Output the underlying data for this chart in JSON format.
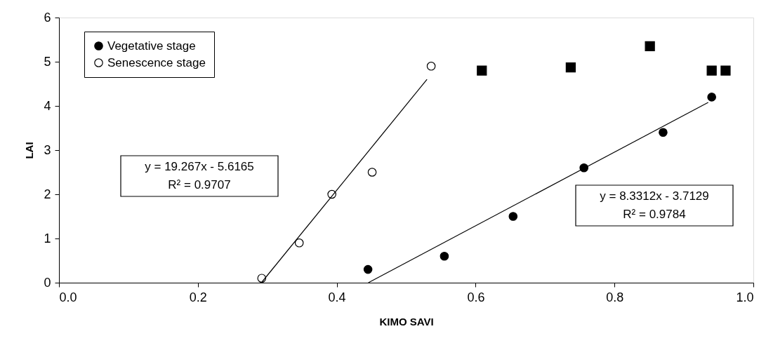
{
  "chart_data": {
    "type": "scatter",
    "xlabel": "KIMO SAVI",
    "ylabel": "LAI",
    "xlim": [
      0,
      1
    ],
    "xticks": [
      {
        "value": 0,
        "label": "0.0"
      },
      {
        "value": 0.2,
        "label": "0.2"
      },
      {
        "value": 0.4,
        "label": "0.4"
      },
      {
        "value": 0.6,
        "label": "0.6"
      },
      {
        "value": 0.8,
        "label": "0.8"
      },
      {
        "value": 1,
        "label": "1.0"
      }
    ],
    "ylim": [
      0,
      6
    ],
    "yticks": [
      {
        "value": 0,
        "label": "0"
      },
      {
        "value": 1,
        "label": "1"
      },
      {
        "value": 2,
        "label": "2"
      },
      {
        "value": 3,
        "label": "3"
      },
      {
        "value": 4,
        "label": "4"
      },
      {
        "value": 5,
        "label": "5"
      },
      {
        "value": 6,
        "label": "6"
      }
    ],
    "grid": false,
    "legend": "top left",
    "series": [
      {
        "name": "Vegetative stage",
        "marker": "circle",
        "color": "#000000",
        "x": [
          0.445,
          0.555,
          0.654,
          0.756,
          0.87,
          0.94
        ],
        "values": [
          0.3,
          0.6,
          1.5,
          2.6,
          3.4,
          4.2
        ]
      },
      {
        "name": "Senescence stage",
        "marker": "circle",
        "color": "#ffffff",
        "x": [
          0.292,
          0.346,
          0.393,
          0.451,
          0.536
        ],
        "values": [
          0.1,
          0.9,
          2.0,
          2.5,
          4.9
        ]
      },
      {
        "marker": "square",
        "color": "#000000",
        "x": [
          0.609,
          0.737,
          0.851,
          0.94,
          0.96
        ],
        "values": [
          4.8,
          4.87,
          5.35,
          4.8,
          4.8
        ]
      },
      {
        "type": "line",
        "color": "#000000",
        "x": [
          0.4456,
          0.935
        ],
        "values": [
          0,
          4.08
        ]
      },
      {
        "type": "line",
        "color": "#000000",
        "x": [
          0.2915,
          0.53
        ],
        "values": [
          0,
          4.6
        ]
      }
    ],
    "annotations": [
      "y = 19.267x - 5.6165\nR² = 0.9707",
      "y = 8.3312x - 3.7129\nR² = 0.9784"
    ]
  }
}
